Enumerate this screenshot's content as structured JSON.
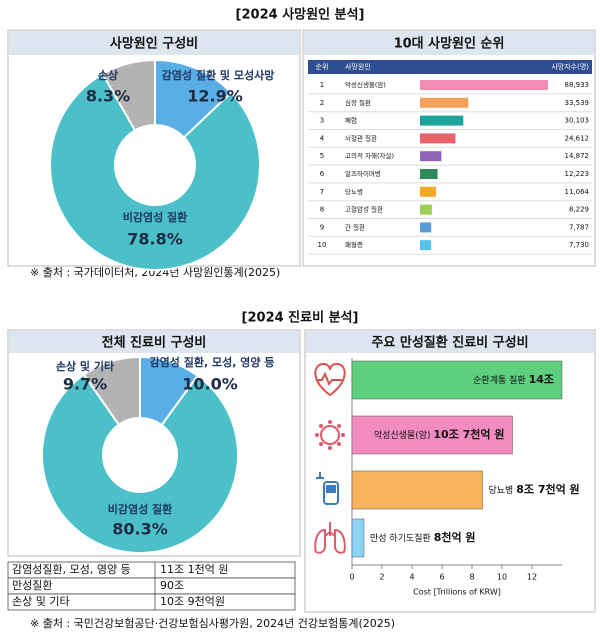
{
  "sections": [
    {
      "title": "[2024 사망원인 분석]",
      "source": "※ 출처 : 국가데이터처, 2024년 사망원인통계(2025)"
    },
    {
      "title": "[2024 진료비 분석]",
      "source": "※ 출처 : 국민건강보험공단·건강보험심사평가원, 2024년 건강보험통계(2025)"
    }
  ],
  "chart_data": [
    {
      "type": "donut",
      "title": "사망원인 구성비",
      "categories": [
        "감염성 질환 및 모성사망",
        "비감염성 질환",
        "손상"
      ],
      "values": [
        12.9,
        78.8,
        8.3
      ],
      "value_labels": [
        "12.9%",
        "78.8%",
        "8.3%"
      ],
      "colors": [
        "#5aaee6",
        "#4bc0c8",
        "#b3b3b3"
      ]
    },
    {
      "type": "rank-bar",
      "title": "10대 사망원인 순위",
      "column_headers": [
        "순위",
        "사망원인",
        "사망자수(명)"
      ],
      "ranks": [
        1,
        2,
        3,
        4,
        5,
        6,
        7,
        8,
        9,
        10
      ],
      "categories": [
        "악성신생물(암)",
        "심장 질환",
        "폐렴",
        "뇌혈관 질환",
        "고의적 자해(자살)",
        "알츠하이머병",
        "당뇨병",
        "고혈압성 질환",
        "간 질환",
        "패혈증"
      ],
      "values": [
        88933,
        33539,
        30103,
        24612,
        14872,
        12223,
        11064,
        8229,
        7787,
        7730
      ],
      "value_labels": [
        "88,933",
        "33,539",
        "30,103",
        "24,612",
        "14,872",
        "12,223",
        "11,064",
        "8,229",
        "7,787",
        "7,730"
      ],
      "colors": [
        "#f28cb4",
        "#f5a05a",
        "#1ba39c",
        "#e8636a",
        "#8f63b8",
        "#2e8b57",
        "#f5a623",
        "#9bcf53",
        "#5b9bd5",
        "#55c3e6"
      ]
    },
    {
      "type": "donut",
      "title": "전체 진료비 구성비",
      "categories": [
        "감염성 질환, 모성, 영양 등",
        "비감염성 질환",
        "손상 및 기타"
      ],
      "values": [
        10.0,
        80.3,
        9.7
      ],
      "value_labels": [
        "10.0%",
        "80.3%",
        "9.7%"
      ],
      "colors": [
        "#5aaee6",
        "#4bc0c8",
        "#b3b3b3"
      ]
    },
    {
      "type": "hbar",
      "title": "주요 만성질환 진료비 구성비",
      "categories": [
        "순환계통 질환",
        "악성신생물(암)",
        "당뇨병",
        "만성 하기도질환"
      ],
      "values": [
        14,
        10.7,
        8.7,
        0.8
      ],
      "value_labels": [
        "14조",
        "10조 7천억 원",
        "8조 7천억 원",
        "8천억 원"
      ],
      "colors": [
        "#5dcf7e",
        "#f28cc0",
        "#f7b45c",
        "#8ad3f5"
      ],
      "xlim": [
        0,
        14
      ],
      "xticks": [
        0,
        2,
        4,
        6,
        8,
        10,
        12
      ],
      "xlabel": "Cost [Trillions of KRW]"
    }
  ],
  "table": {
    "rows": [
      [
        "감염성질환, 모성, 영양 등",
        "11조 1천억 원"
      ],
      [
        "만성질환",
        "90조"
      ],
      [
        "손상 및 기타",
        "10조 9천억원"
      ]
    ]
  }
}
